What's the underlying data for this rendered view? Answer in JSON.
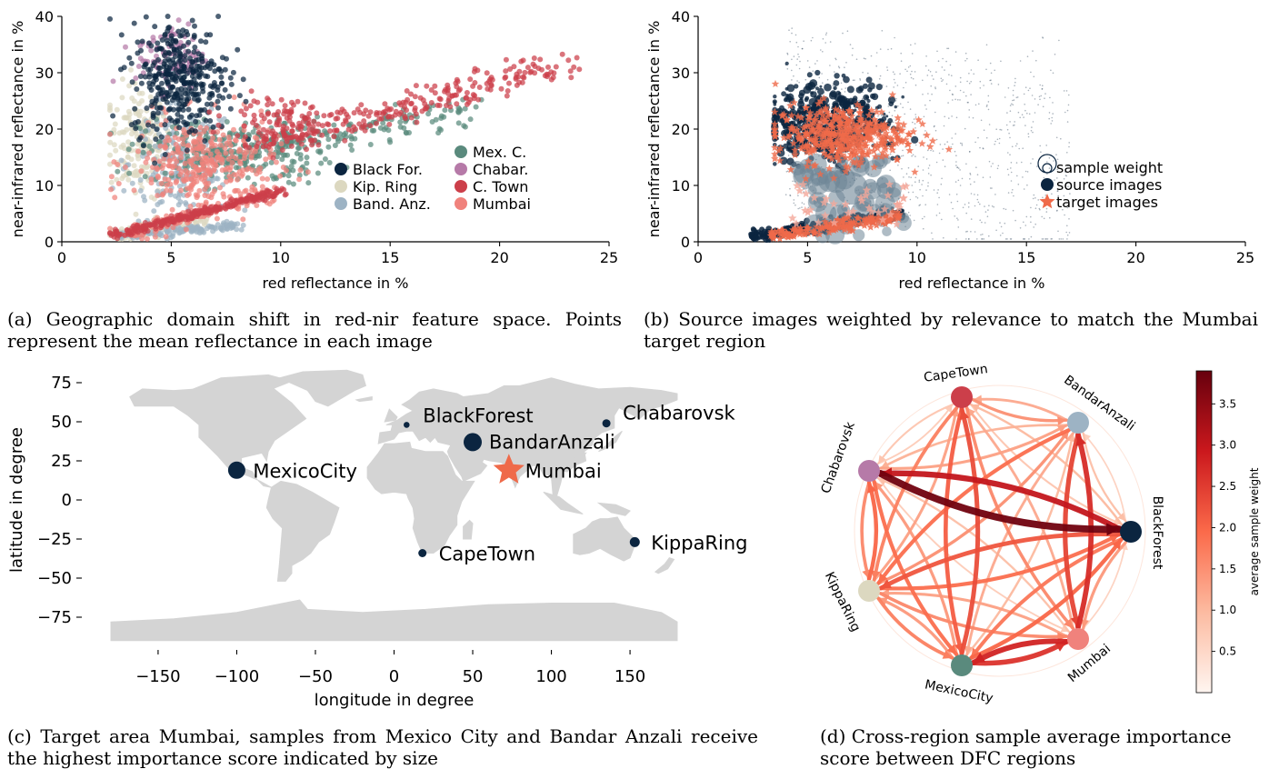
{
  "captions": {
    "a": "(a) Geographic domain shift in red-nir feature space. Points represent the mean reflectance in each image",
    "b": "(b) Source images weighted by relevance to match the Mumbai target region",
    "c": "(c) Target area Mumbai, samples from Mexico City and Bandar Anzali receive the highest importance score indicated by size",
    "d": "(d) Cross-region sample average importance score between DFC regions"
  },
  "chart_data": [
    {
      "id": "a",
      "type": "scatter",
      "xlabel": "red reflectance in %",
      "ylabel": "near-infrared reflectance in %",
      "xlim": [
        0,
        25
      ],
      "ylim": [
        0,
        40
      ],
      "xticks": [
        0,
        5,
        10,
        15,
        20,
        25
      ],
      "yticks": [
        0,
        10,
        20,
        30,
        40
      ],
      "legend_placement": "lower-right",
      "series": [
        {
          "name": "Black For.",
          "color": "#0b2540",
          "cluster": {
            "x": [
              3,
              8.5
            ],
            "y": [
              17,
              40
            ]
          }
        },
        {
          "name": "Kip. Ring",
          "color": "#dcd8c0",
          "cluster": {
            "x": [
              2.2,
              6
            ],
            "y": [
              1,
              30
            ]
          }
        },
        {
          "name": "Band. Anz.",
          "color": "#9db3c4",
          "cluster": {
            "x": [
              3,
              9
            ],
            "y": [
              1,
              25
            ]
          }
        },
        {
          "name": "Mex. C.",
          "color": "#5a8a7d",
          "cluster": {
            "x": [
              3.5,
              19
            ],
            "y": [
              8,
              26
            ]
          }
        },
        {
          "name": "Chabar.",
          "color": "#b67aa8",
          "cluster": {
            "x": [
              4,
              8
            ],
            "y": [
              28,
              38
            ]
          }
        },
        {
          "name": "C. Town",
          "color": "#cc3f4a",
          "cluster": {
            "x": [
              2.3,
              23.3
            ],
            "y": [
              1,
              32
            ]
          }
        },
        {
          "name": "Mumbai",
          "color": "#f0827c",
          "cluster": {
            "x": [
              3,
              10
            ],
            "y": [
              1,
              22
            ]
          }
        }
      ]
    },
    {
      "id": "b",
      "type": "scatter",
      "xlabel": "red reflectance in %",
      "ylabel": "near-infrared reflectance in %",
      "xlim": [
        0,
        25
      ],
      "ylim": [
        0,
        40
      ],
      "xticks": [
        0,
        5,
        10,
        15,
        20,
        25
      ],
      "yticks": [
        0,
        10,
        20,
        30,
        40
      ],
      "legend_placement": "center-right",
      "legend": [
        "sample weight",
        "source images",
        "target images"
      ],
      "series": [
        {
          "name": "source images",
          "color": "#0b2540",
          "marker": "circle"
        },
        {
          "name": "target images",
          "color": "#ef6a4a",
          "marker": "star"
        }
      ]
    },
    {
      "id": "c",
      "type": "scatter",
      "xlabel": "longitude in degree",
      "ylabel": "latitude in degree",
      "xlim": [
        -185,
        185
      ],
      "ylim": [
        -92,
        88
      ],
      "xticks": [
        -150,
        -100,
        -50,
        0,
        50,
        100,
        150
      ],
      "yticks": [
        75,
        50,
        25,
        0,
        -25,
        -50,
        -75
      ],
      "points": [
        {
          "name": "BlackForest",
          "lon": 8,
          "lat": 48,
          "weight": 0.08,
          "marker": "circle"
        },
        {
          "name": "Chabarovsk",
          "lon": 135,
          "lat": 49,
          "weight": 0.2,
          "marker": "circle"
        },
        {
          "name": "BandarAnzali",
          "lon": 50,
          "lat": 37,
          "weight": 0.75,
          "marker": "circle"
        },
        {
          "name": "MexicoCity",
          "lon": -100,
          "lat": 19,
          "weight": 0.7,
          "marker": "circle"
        },
        {
          "name": "Mumbai",
          "lon": 73,
          "lat": 19,
          "weight": 1,
          "marker": "star",
          "target": true
        },
        {
          "name": "CapeTown",
          "lon": 18,
          "lat": -34,
          "weight": 0.2,
          "marker": "circle"
        },
        {
          "name": "KippaRing",
          "lon": 153,
          "lat": -27,
          "weight": 0.3,
          "marker": "circle"
        }
      ]
    },
    {
      "id": "d",
      "type": "network",
      "colorbar": {
        "label": "average sample weight",
        "min": 0,
        "max": 3.9,
        "ticks": [
          0.5,
          1.0,
          1.5,
          2.0,
          2.5,
          3.0,
          3.5
        ]
      },
      "nodes": [
        {
          "name": "CapeTown",
          "color": "#cc3f4a"
        },
        {
          "name": "BandarAnzali",
          "color": "#9db3c4"
        },
        {
          "name": "BlackForest",
          "color": "#0b2540"
        },
        {
          "name": "Mumbai",
          "color": "#f0827c"
        },
        {
          "name": "MexicoCity",
          "color": "#5a8a7d"
        },
        {
          "name": "KippaRing",
          "color": "#dcd8c0"
        },
        {
          "name": "Chabarovsk",
          "color": "#b67aa8"
        }
      ],
      "edges": [
        {
          "source": "Chabarovsk",
          "target": "BlackForest",
          "weight": 3.8
        },
        {
          "source": "BlackForest",
          "target": "Chabarovsk",
          "weight": 3.0
        },
        {
          "source": "Mumbai",
          "target": "MexicoCity",
          "weight": 2.8
        },
        {
          "source": "MexicoCity",
          "target": "Mumbai",
          "weight": 2.6
        },
        {
          "source": "Mumbai",
          "target": "BandarAnzali",
          "weight": 2.7
        },
        {
          "source": "BandarAnzali",
          "target": "Mumbai",
          "weight": 2.4
        },
        {
          "source": "MexicoCity",
          "target": "CapeTown",
          "weight": 2.3
        },
        {
          "source": "CapeTown",
          "target": "MexicoCity",
          "weight": 2.1
        },
        {
          "source": "BlackForest",
          "target": "KippaRing",
          "weight": 2.2
        },
        {
          "source": "KippaRing",
          "target": "BlackForest",
          "weight": 1.9
        },
        {
          "source": "MexicoCity",
          "target": "BlackForest",
          "weight": 2.0
        },
        {
          "source": "BlackForest",
          "target": "MexicoCity",
          "weight": 1.8
        },
        {
          "source": "KippaRing",
          "target": "Chabarovsk",
          "weight": 2.0
        },
        {
          "source": "Chabarovsk",
          "target": "KippaRing",
          "weight": 1.6
        },
        {
          "source": "BandarAnzali",
          "target": "KippaRing",
          "weight": 1.9
        },
        {
          "source": "KippaRing",
          "target": "BandarAnzali",
          "weight": 1.5
        },
        {
          "source": "KippaRing",
          "target": "MexicoCity",
          "weight": 1.7
        },
        {
          "source": "MexicoCity",
          "target": "KippaRing",
          "weight": 1.4
        },
        {
          "source": "KippaRing",
          "target": "Mumbai",
          "weight": 1.6
        },
        {
          "source": "Mumbai",
          "target": "KippaRing",
          "weight": 1.3
        },
        {
          "source": "CapeTown",
          "target": "BandarAnzali",
          "weight": 1.5
        },
        {
          "source": "BandarAnzali",
          "target": "CapeTown",
          "weight": 1.2
        },
        {
          "source": "CapeTown",
          "target": "KippaRing",
          "weight": 1.7
        },
        {
          "source": "KippaRing",
          "target": "CapeTown",
          "weight": 1.3
        },
        {
          "source": "CapeTown",
          "target": "Mumbai",
          "weight": 1.6
        },
        {
          "source": "Mumbai",
          "target": "CapeTown",
          "weight": 1.2
        },
        {
          "source": "Chabarovsk",
          "target": "MexicoCity",
          "weight": 1.9
        },
        {
          "source": "MexicoCity",
          "target": "Chabarovsk",
          "weight": 1.4
        },
        {
          "source": "Chabarovsk",
          "target": "BandarAnzali",
          "weight": 1.3
        },
        {
          "source": "BandarAnzali",
          "target": "Chabarovsk",
          "weight": 1.1
        },
        {
          "source": "CapeTown",
          "target": "Chabarovsk",
          "weight": 0.8
        },
        {
          "source": "Chabarovsk",
          "target": "CapeTown",
          "weight": 0.7
        },
        {
          "source": "BandarAnzali",
          "target": "MexicoCity",
          "weight": 1.2
        },
        {
          "source": "MexicoCity",
          "target": "BandarAnzali",
          "weight": 1.0
        },
        {
          "source": "BlackForest",
          "target": "CapeTown",
          "weight": 1.0
        },
        {
          "source": "CapeTown",
          "target": "BlackForest",
          "weight": 0.8
        },
        {
          "source": "BlackForest",
          "target": "Mumbai",
          "weight": 1.4
        },
        {
          "source": "Mumbai",
          "target": "BlackForest",
          "weight": 0.6
        },
        {
          "source": "Mumbai",
          "target": "Chabarovsk",
          "weight": 0.9
        },
        {
          "source": "Chabarovsk",
          "target": "Mumbai",
          "weight": 0.7
        },
        {
          "source": "BandarAnzali",
          "target": "BlackForest",
          "weight": 0.9
        },
        {
          "source": "BlackForest",
          "target": "BandarAnzali",
          "weight": 0.6
        }
      ]
    }
  ]
}
